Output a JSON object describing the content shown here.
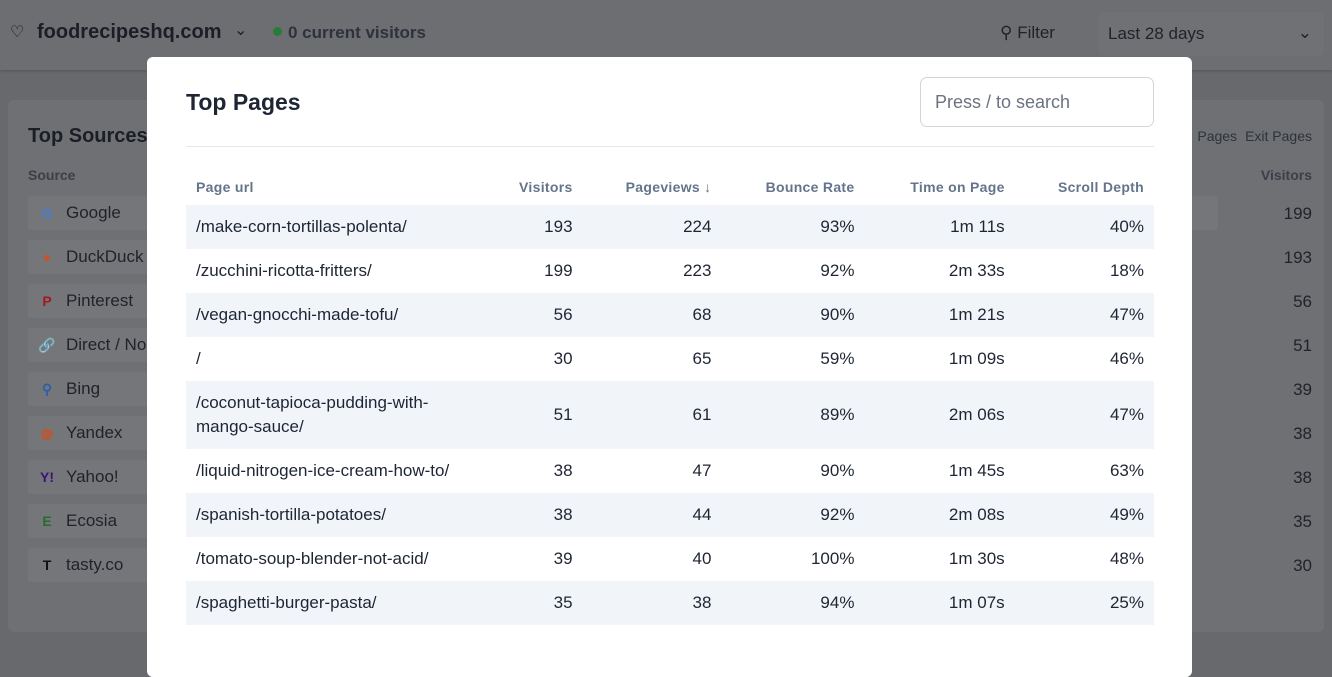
{
  "header": {
    "site": "foodrecipeshq.com",
    "live": "0 current visitors",
    "filter": "Filter",
    "range": "Last 28 days"
  },
  "sources": {
    "title": "Top Sources",
    "col_source": "Source",
    "col_visitors": "Visitors",
    "tabs": [
      "Pages",
      "Exit Pages"
    ],
    "items": [
      {
        "label": "Google",
        "visitors": "199",
        "icon": "google-icon",
        "color": "#4a7bd0"
      },
      {
        "label": "DuckDuck",
        "visitors": "193",
        "icon": "duckduckgo-icon",
        "color": "#c0552e"
      },
      {
        "label": "Pinterest",
        "visitors": "56",
        "icon": "pinterest-icon",
        "color": "#a01a1f"
      },
      {
        "label": "Direct / No",
        "visitors": "51",
        "icon": "link-icon",
        "color": "#555a62"
      },
      {
        "label": "Bing",
        "visitors": "39",
        "icon": "search-icon",
        "color": "#2d5fa8"
      },
      {
        "label": "Yandex",
        "visitors": "38",
        "icon": "yandex-icon",
        "color": "#c0552e"
      },
      {
        "label": "Yahoo!",
        "visitors": "38",
        "icon": "yahoo-icon",
        "color": "#3d137a"
      },
      {
        "label": "Ecosia",
        "visitors": "35",
        "icon": "ecosia-icon",
        "color": "#2a6b2e"
      },
      {
        "label": "tasty.co",
        "visitors": "30",
        "icon": "tasty-icon",
        "color": "#111111"
      }
    ]
  },
  "modal": {
    "title": "Top Pages",
    "search_placeholder": "Press / to search",
    "columns": [
      "Page url",
      "Visitors",
      "Pageviews ↓",
      "Bounce Rate",
      "Time on Page",
      "Scroll Depth"
    ],
    "rows": [
      [
        "/make-corn-tortillas-polenta/",
        "193",
        "224",
        "93%",
        "1m 11s",
        "40%"
      ],
      [
        "/zucchini-ricotta-fritters/",
        "199",
        "223",
        "92%",
        "2m 33s",
        "18%"
      ],
      [
        "/vegan-gnocchi-made-tofu/",
        "56",
        "68",
        "90%",
        "1m 21s",
        "47%"
      ],
      [
        "/",
        "30",
        "65",
        "59%",
        "1m 09s",
        "46%"
      ],
      [
        "/coconut-tapioca-pudding-with-mango-sauce/",
        "51",
        "61",
        "89%",
        "2m 06s",
        "47%"
      ],
      [
        "/liquid-nitrogen-ice-cream-how-to/",
        "38",
        "47",
        "90%",
        "1m 45s",
        "63%"
      ],
      [
        "/spanish-tortilla-potatoes/",
        "38",
        "44",
        "92%",
        "2m 08s",
        "49%"
      ],
      [
        "/tomato-soup-blender-not-acid/",
        "39",
        "40",
        "100%",
        "1m 30s",
        "48%"
      ],
      [
        "/spaghetti-burger-pasta/",
        "35",
        "38",
        "94%",
        "1m 07s",
        "25%"
      ]
    ]
  }
}
